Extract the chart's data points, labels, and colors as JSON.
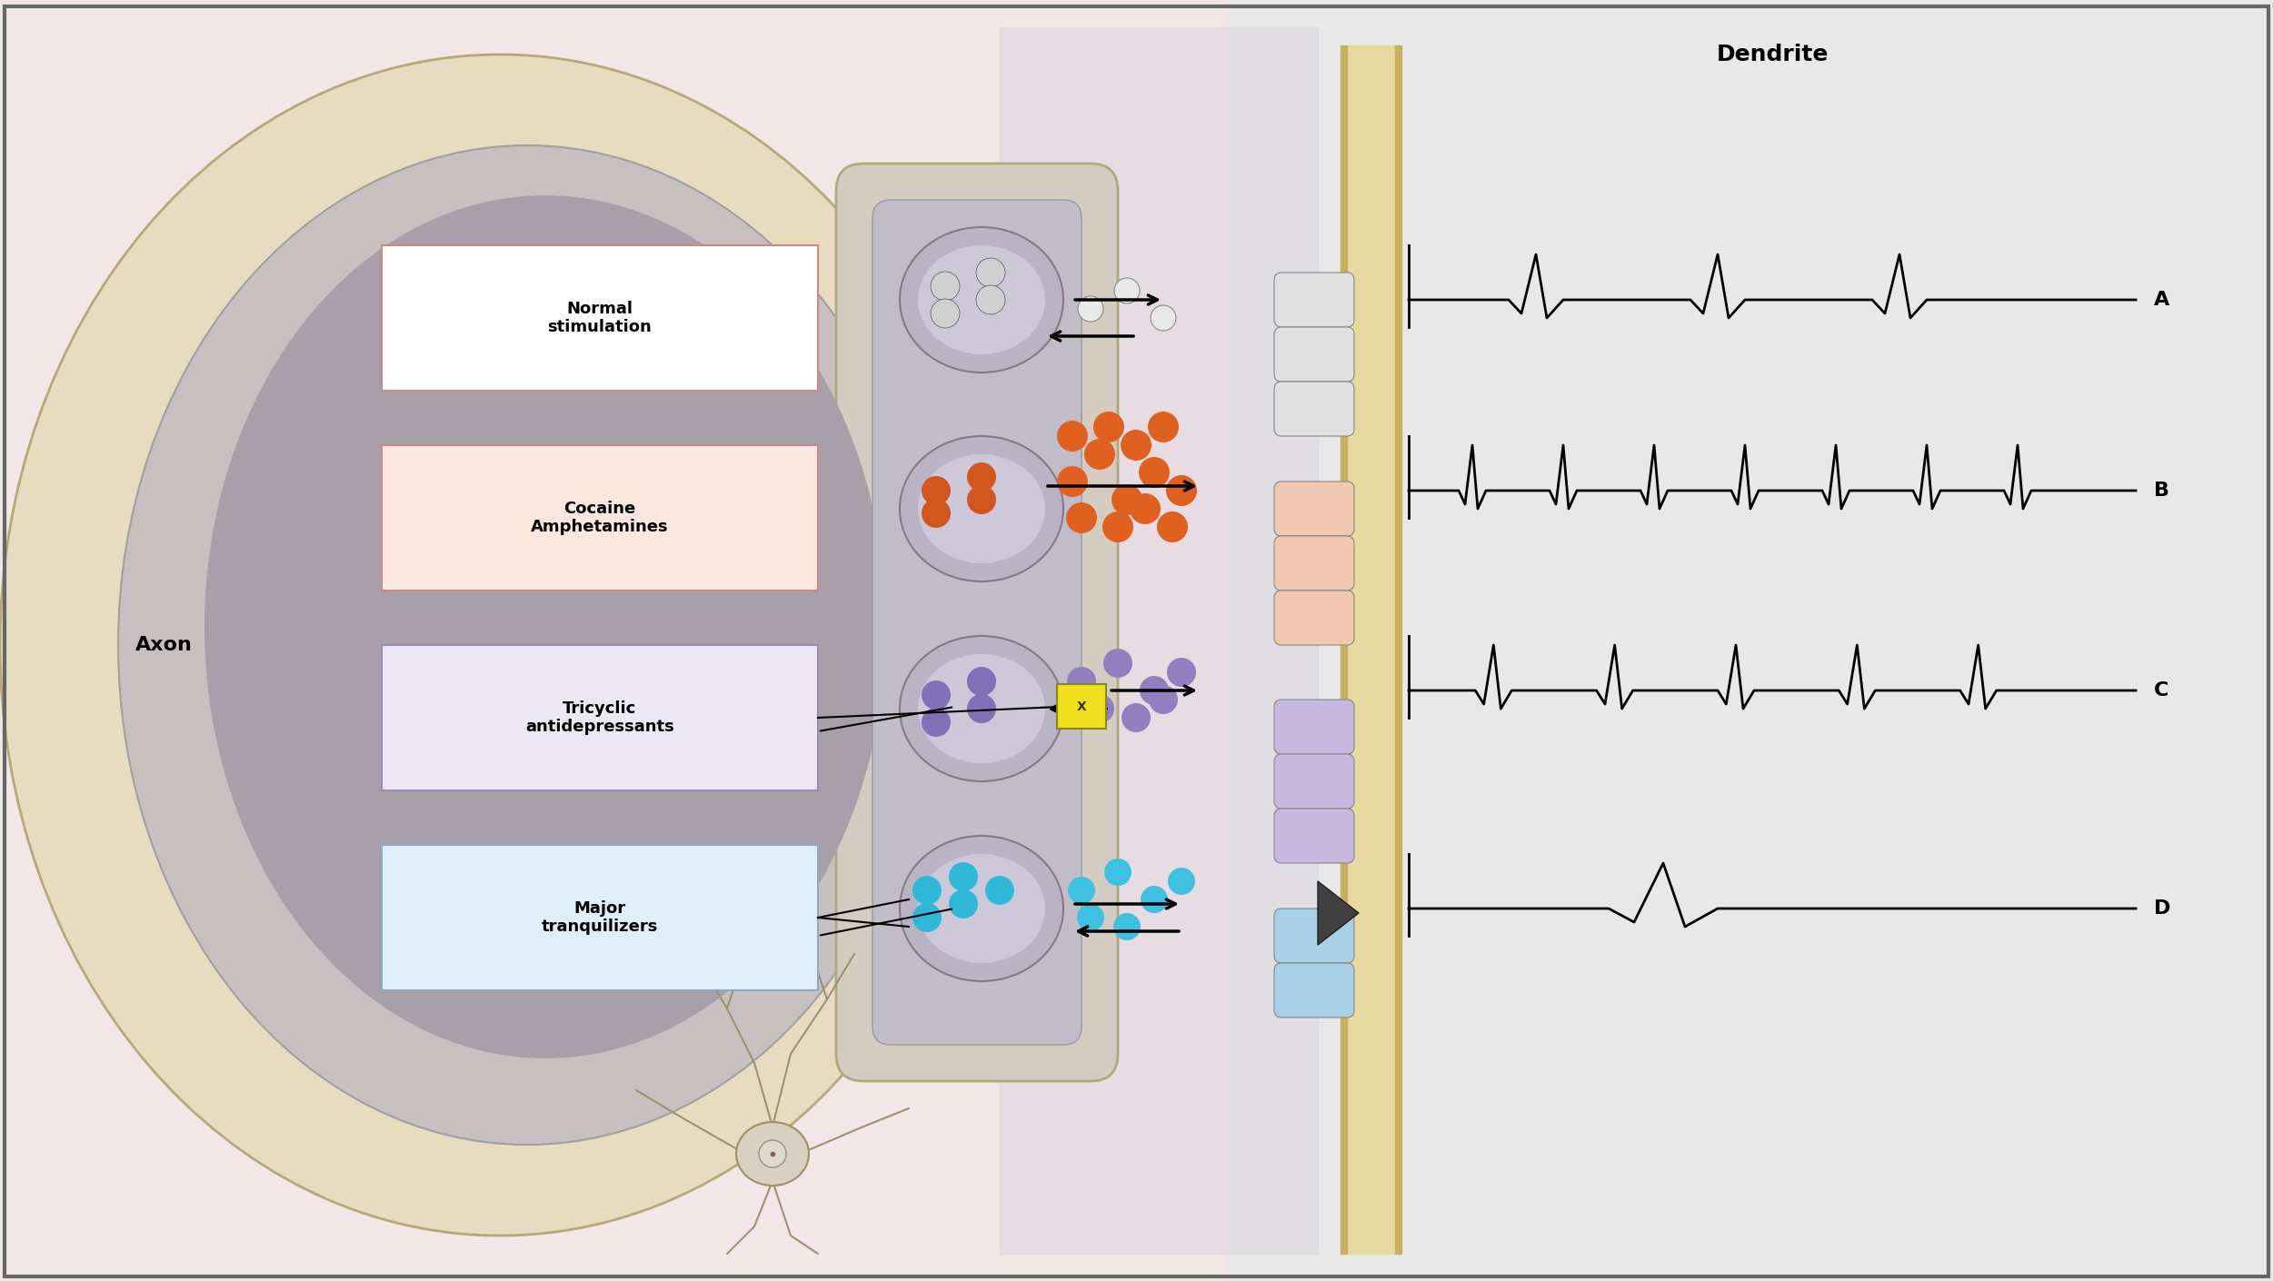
{
  "fig_width": 25.01,
  "fig_height": 14.1,
  "bg_color": "#f2e6e6",
  "border_color": "#888888",
  "title_text": "Dendrite",
  "axon_label": "Axon",
  "labels": {
    "A": "A",
    "B": "B",
    "C": "C",
    "D": "D"
  },
  "boxes": [
    {
      "text": "Normal\nstimulation",
      "bg": "#ffffff",
      "border": "#cc8888",
      "row": 0
    },
    {
      "text": "Cocaine\nAmphetamines",
      "bg": "#fde8e0",
      "border": "#cc8888",
      "row": 1
    },
    {
      "text": "Tricyclic\nantidepressants",
      "bg": "#ede8f5",
      "border": "#cc8888",
      "row": 2
    },
    {
      "text": "Major\ntranquilizers",
      "bg": "#dff0fa",
      "border": "#cc8888",
      "row": 3
    }
  ],
  "dot_colors": [
    "#ffffff",
    "#e06020",
    "#9080c0",
    "#40c0e0"
  ],
  "dendrite_colors": [
    "#e8e8e8",
    "#f5c8b8",
    "#c8b8e0",
    "#b0d8f0"
  ],
  "signal_rows": [
    {
      "spikes": 3,
      "label": "A"
    },
    {
      "spikes": 7,
      "label": "B"
    },
    {
      "spikes": 5,
      "label": "C"
    },
    {
      "spikes": 1,
      "label": "D"
    }
  ]
}
